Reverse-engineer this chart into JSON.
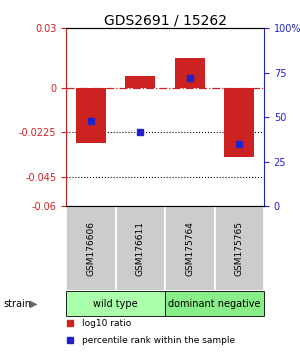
{
  "title": "GDS2691 / 15262",
  "samples": [
    "GSM176606",
    "GSM176611",
    "GSM175764",
    "GSM175765"
  ],
  "log10_ratios": [
    -0.028,
    0.006,
    0.015,
    -0.035
  ],
  "percentile_ranks": [
    48,
    42,
    72,
    35
  ],
  "bar_color": "#cc2222",
  "dot_color": "#2222cc",
  "ylim_left": [
    -0.06,
    0.03
  ],
  "ylim_right": [
    0,
    100
  ],
  "yticks_left": [
    0.03,
    0,
    -0.0225,
    -0.045,
    -0.06
  ],
  "ytick_labels_left": [
    "0.03",
    "0",
    "-0.0225",
    "-0.045",
    "-0.06"
  ],
  "yticks_right": [
    0,
    25,
    50,
    75,
    100
  ],
  "ytick_labels_right": [
    "0",
    "25",
    "50",
    "75",
    "100%"
  ],
  "hline_y": 0,
  "dotted_lines": [
    -0.0225,
    -0.045
  ],
  "group_labels": [
    "wild type",
    "dominant negative"
  ],
  "group_ranges": [
    [
      0,
      1
    ],
    [
      2,
      3
    ]
  ],
  "group_colors": [
    "#aaffaa",
    "#88ee88"
  ],
  "strain_label": "strain",
  "legend_items": [
    {
      "color": "#cc2222",
      "label": "log10 ratio"
    },
    {
      "color": "#2222cc",
      "label": "percentile rank within the sample"
    }
  ],
  "bar_width": 0.6,
  "background_color": "#ffffff",
  "plot_bg_color": "#ffffff",
  "left_axis_color": "#cc2222",
  "right_axis_color": "#2222cc"
}
